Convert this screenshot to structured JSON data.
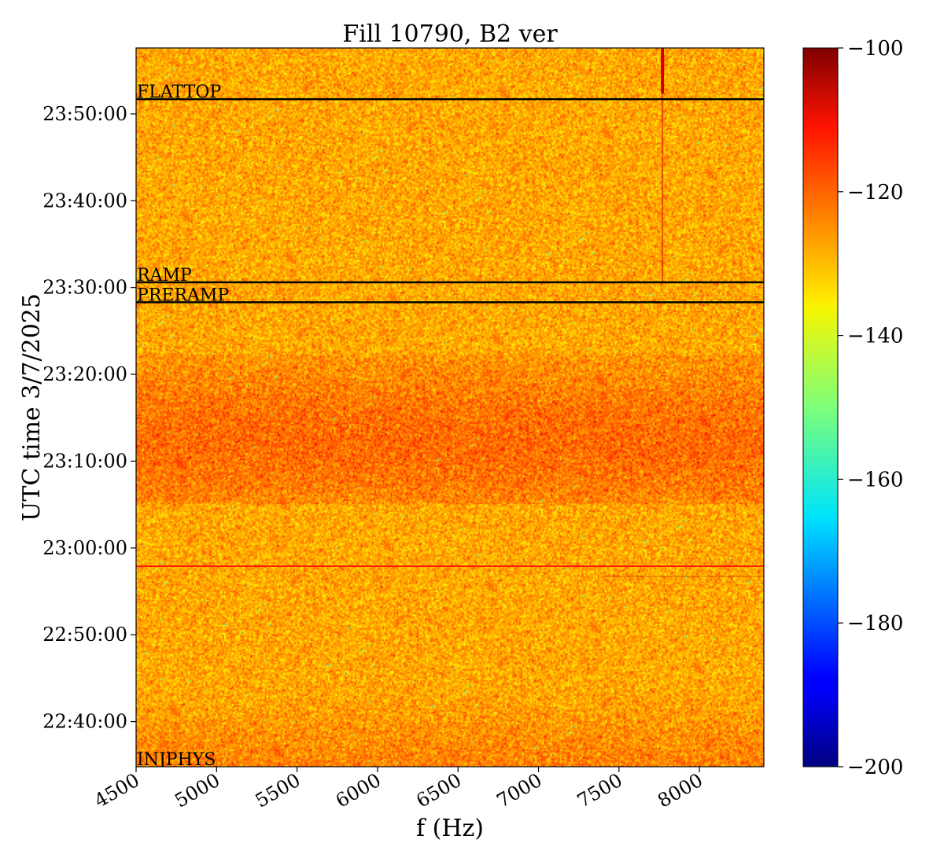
{
  "chart_data": {
    "type": "heatmap",
    "title": "Fill 10790, B2 ver",
    "xlabel": "f (Hz)",
    "ylabel": "UTC time 3/7/2025",
    "xlim": [
      4500,
      8400
    ],
    "x_ticks": [
      4500,
      5000,
      5500,
      6000,
      6500,
      7000,
      7500,
      8000
    ],
    "y_ticks": [
      {
        "value": "22:40:00",
        "minutes": 40
      },
      {
        "value": "22:50:00",
        "minutes": 50
      },
      {
        "value": "23:00:00",
        "minutes": 60
      },
      {
        "value": "23:10:00",
        "minutes": 70
      },
      {
        "value": "23:20:00",
        "minutes": 80
      },
      {
        "value": "23:30:00",
        "minutes": 90
      },
      {
        "value": "23:40:00",
        "minutes": 100
      },
      {
        "value": "23:50:00",
        "minutes": 110
      }
    ],
    "colorbar": {
      "range": [
        -200,
        -100
      ],
      "ticks": [
        -100,
        -120,
        -140,
        -160,
        -180,
        -200
      ],
      "colormap": "jet"
    },
    "markers": [
      {
        "label": "FLATTOP",
        "minutes": 111.7
      },
      {
        "label": "RAMP",
        "minutes": 90.6
      },
      {
        "label": "PRERAMP",
        "minutes": 88.3
      },
      {
        "label": "INJPHYS",
        "minutes": 35
      }
    ],
    "features": {
      "horizontal_line_minutes": 57.9,
      "vertical_line_hz": 7770
    }
  }
}
